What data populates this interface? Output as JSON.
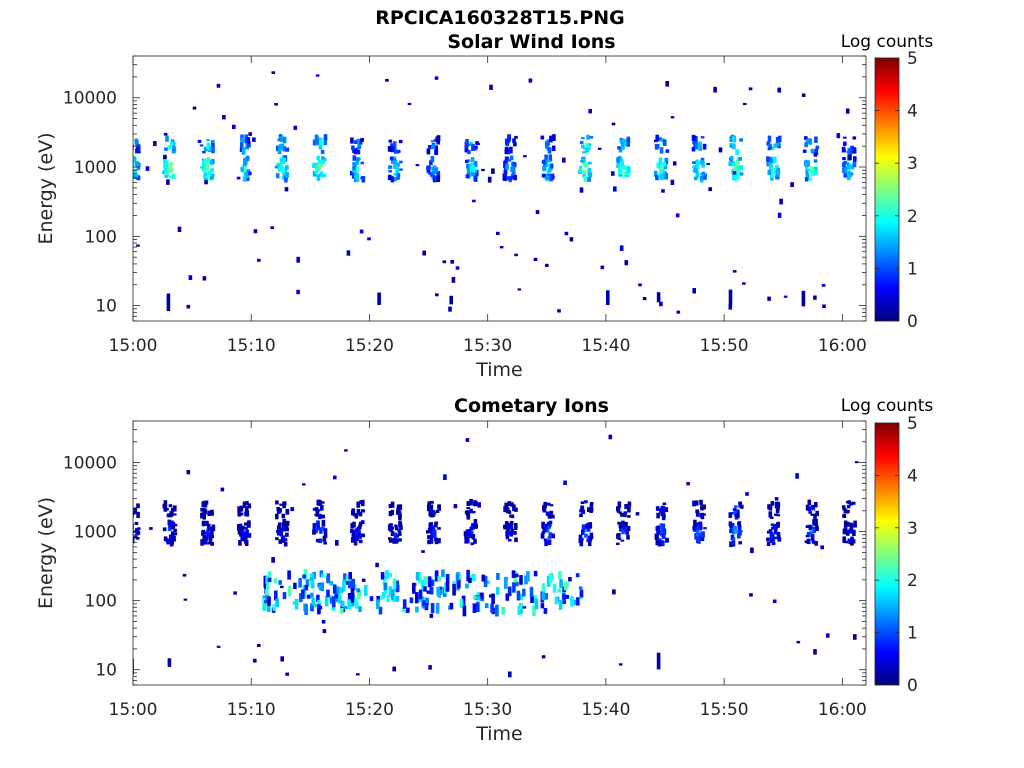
{
  "figure_title": "RPCICA160328T15.PNG",
  "colors": {
    "colormap": [
      "#00007f",
      "#0000ff",
      "#007fff",
      "#00ffff",
      "#7fff7f",
      "#ffff00",
      "#ff7f00",
      "#ff0000",
      "#7f0000"
    ],
    "axis": "#262626",
    "background": "#ffffff"
  },
  "chart_data": [
    {
      "type": "heatmap",
      "title": "Solar Wind Ions",
      "xlabel": "Time",
      "ylabel": "Energy (eV)",
      "colorbar_label": "Log counts",
      "x_ticks": [
        "15:00",
        "15:10",
        "15:20",
        "15:30",
        "15:40",
        "15:50",
        "16:00"
      ],
      "y_ticks": [
        "10",
        "100",
        "1000",
        "10000"
      ],
      "colorbar_ticks": [
        "0",
        "1",
        "2",
        "3",
        "4",
        "5"
      ],
      "xlim_minutes": [
        0,
        62
      ],
      "ylim_eV": [
        6,
        40000
      ],
      "clim": [
        0,
        5
      ],
      "yscale": "log",
      "sweep_times_min": [
        0.0,
        3.1,
        6.3,
        9.4,
        12.6,
        15.8,
        19.0,
        22.2,
        25.4,
        28.6,
        31.9,
        35.1,
        38.3,
        41.5,
        44.7,
        47.9,
        51.0,
        54.2,
        57.4,
        60.6
      ],
      "sweep_peak_log_counts": [
        2.5,
        3.0,
        2.8,
        2.4,
        2.6,
        2.8,
        2.3,
        2.2,
        2.0,
        2.3,
        2.0,
        2.2,
        2.8,
        2.7,
        2.6,
        2.5,
        2.9,
        2.6,
        2.7,
        2.2
      ],
      "main_energy_eV": 950,
      "alpha_energy_eV": 2100
    },
    {
      "type": "heatmap",
      "title": "Cometary Ions",
      "xlabel": "Time",
      "ylabel": "Energy (eV)",
      "colorbar_label": "Log counts",
      "x_ticks": [
        "15:00",
        "15:10",
        "15:20",
        "15:30",
        "15:40",
        "15:50",
        "16:00"
      ],
      "y_ticks": [
        "10",
        "100",
        "1000",
        "10000"
      ],
      "colorbar_ticks": [
        "0",
        "1",
        "2",
        "3",
        "4",
        "5"
      ],
      "xlim_minutes": [
        0,
        62
      ],
      "ylim_eV": [
        6,
        40000
      ],
      "clim": [
        0,
        5
      ],
      "yscale": "log",
      "sweep_times_min": [
        0.0,
        3.1,
        6.3,
        9.4,
        12.6,
        15.8,
        19.0,
        22.2,
        25.4,
        28.6,
        31.9,
        35.1,
        38.3,
        41.5,
        44.7,
        47.9,
        51.0,
        54.2,
        57.4,
        60.6
      ],
      "sweep_peak_log_counts": [
        1.2,
        1.3,
        1.2,
        1.0,
        1.1,
        1.6,
        1.3,
        1.1,
        1.2,
        1.3,
        1.0,
        1.4,
        1.6,
        1.3,
        1.5,
        1.5,
        1.8,
        1.3,
        1.5,
        1.0
      ],
      "low_energy_band_eV": [
        70,
        250
      ],
      "low_energy_band_minutes": [
        11,
        38
      ],
      "low_energy_peak_log_counts": 2.0,
      "main_energy_eV": 950,
      "alpha_energy_eV": 2100
    }
  ]
}
